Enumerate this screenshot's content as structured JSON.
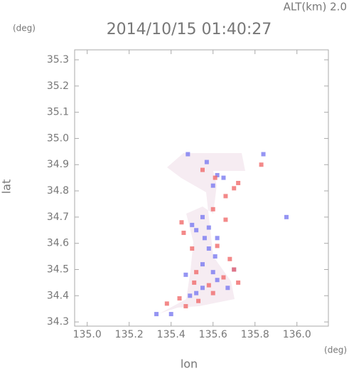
{
  "chart_data": {
    "type": "scatter",
    "title": "2014/10/15 01:40:27",
    "altitude_label": "ALT(km) 2.0",
    "y_unit": "(deg)",
    "x_unit": "(deg)",
    "xlabel": "lon",
    "ylabel": "lat",
    "xlim": [
      134.94,
      136.15
    ],
    "ylim": [
      34.284,
      35.338
    ],
    "xticks": [
      {
        "value": 135.0,
        "label": "135.0"
      },
      135.2,
      135.4,
      135.6,
      135.8,
      {
        "value": 136.0,
        "label": "136.0"
      }
    ],
    "yticks": [
      34.3,
      34.4,
      34.5,
      34.6,
      34.7,
      34.8,
      34.9,
      {
        "value": 35.0,
        "label": "35.0"
      },
      35.1,
      35.2,
      35.3
    ],
    "series": [
      {
        "color": "#7b7bf0",
        "x": [
          135.33,
          135.4,
          135.49,
          135.52,
          135.55,
          135.6,
          135.62,
          135.55,
          135.58,
          135.56,
          135.52,
          135.55,
          135.58,
          135.62,
          135.6,
          135.62,
          135.65,
          135.57,
          135.48,
          135.5,
          135.61,
          135.67,
          135.84,
          135.95,
          135.47,
          135.7
        ],
        "values": [
          34.33,
          34.33,
          34.4,
          34.41,
          34.43,
          34.49,
          34.46,
          34.52,
          34.58,
          34.62,
          34.65,
          34.7,
          34.66,
          34.62,
          34.82,
          34.86,
          34.85,
          34.91,
          34.94,
          34.67,
          34.55,
          34.43,
          34.94,
          34.7,
          34.48,
          34.5
        ]
      },
      {
        "color": "#f06b6b",
        "x": [
          135.38,
          135.47,
          135.51,
          135.58,
          135.65,
          135.7,
          135.52,
          135.62,
          135.46,
          135.66,
          135.6,
          135.7,
          135.72,
          135.61,
          135.66,
          135.83,
          135.55,
          135.5,
          135.68,
          135.6,
          135.72,
          135.53,
          135.44,
          135.45
        ],
        "values": [
          34.37,
          34.36,
          34.45,
          34.44,
          34.47,
          34.5,
          34.49,
          34.59,
          34.64,
          34.69,
          34.73,
          34.81,
          34.83,
          34.85,
          34.78,
          34.9,
          34.88,
          34.58,
          34.54,
          34.41,
          34.45,
          34.38,
          34.39,
          34.68
        ]
      }
    ]
  }
}
